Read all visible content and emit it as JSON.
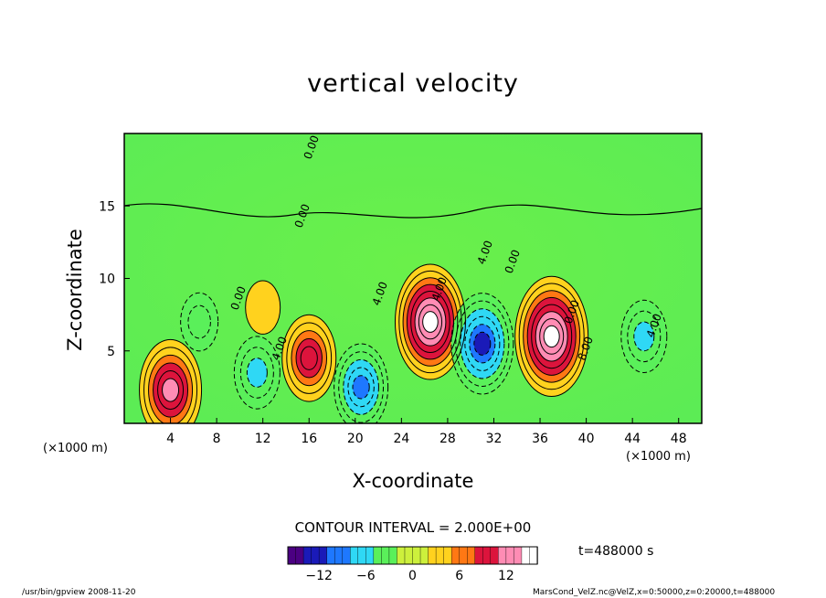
{
  "title": "vertical velocity",
  "xlabel": "X-coordinate",
  "ylabel": "Z-coordinate",
  "x_unit_left": "(×1000 m)",
  "x_unit_right": "(×1000 m)",
  "contour_interval": "CONTOUR INTERVAL = 2.000E+00",
  "time_label": "t=488000  s",
  "footer_left": "/usr/bin/gpview   2008-11-20",
  "footer_right": "MarsCond_VelZ.nc@VelZ,x=0:50000,z=0:20000,t=488000",
  "colorbar": {
    "ticks": [
      "−12",
      "−6",
      "0",
      "6",
      "12"
    ],
    "tick_values": [
      -12,
      -6,
      0,
      6,
      12
    ],
    "range": [
      -16,
      16
    ]
  },
  "contour_labels": [
    "0.00",
    "0.00",
    "0.00",
    "4.00",
    "4.00",
    "4.00",
    "4.00",
    "8.00",
    "4.00",
    "0.00",
    "0.00"
  ],
  "chart_data": {
    "type": "heatmap",
    "title": "vertical velocity",
    "xlabel": "X-coordinate",
    "ylabel": "Z-coordinate",
    "x_ticks": [
      4,
      8,
      12,
      16,
      20,
      24,
      28,
      32,
      36,
      40,
      44,
      48
    ],
    "y_ticks": [
      5,
      10,
      15
    ],
    "xlim": [
      0,
      50
    ],
    "ylim": [
      0,
      20
    ],
    "value_range": [
      -16,
      16
    ],
    "colormap": [
      "#4b0082",
      "#1a1ab8",
      "#1e78ff",
      "#2fd8f5",
      "#5af05a",
      "#cdf03c",
      "#ffd21e",
      "#ff7814",
      "#dc143c",
      "#ff8cb4",
      "#ffffff"
    ],
    "cells": [
      {
        "x": 4,
        "z": 2.3,
        "value": 12,
        "label": "updraft"
      },
      {
        "x": 11.5,
        "z": 3.5,
        "value": -6,
        "label": "downdraft"
      },
      {
        "x": 16,
        "z": 4.5,
        "value": 9,
        "label": "updraft"
      },
      {
        "x": 20.5,
        "z": 2.5,
        "value": -9,
        "label": "downdraft"
      },
      {
        "x": 26.5,
        "z": 7,
        "value": 15,
        "label": "updraft"
      },
      {
        "x": 31,
        "z": 5.5,
        "value": -12,
        "label": "downdraft"
      },
      {
        "x": 37,
        "z": 6,
        "value": 16,
        "label": "updraft"
      },
      {
        "x": 45,
        "z": 6,
        "value": -6,
        "label": "downdraft"
      },
      {
        "x": 6.5,
        "z": 7,
        "value": -3,
        "label": "downdraft"
      },
      {
        "x": 12,
        "z": 8,
        "value": 2,
        "label": "updraft"
      }
    ]
  }
}
